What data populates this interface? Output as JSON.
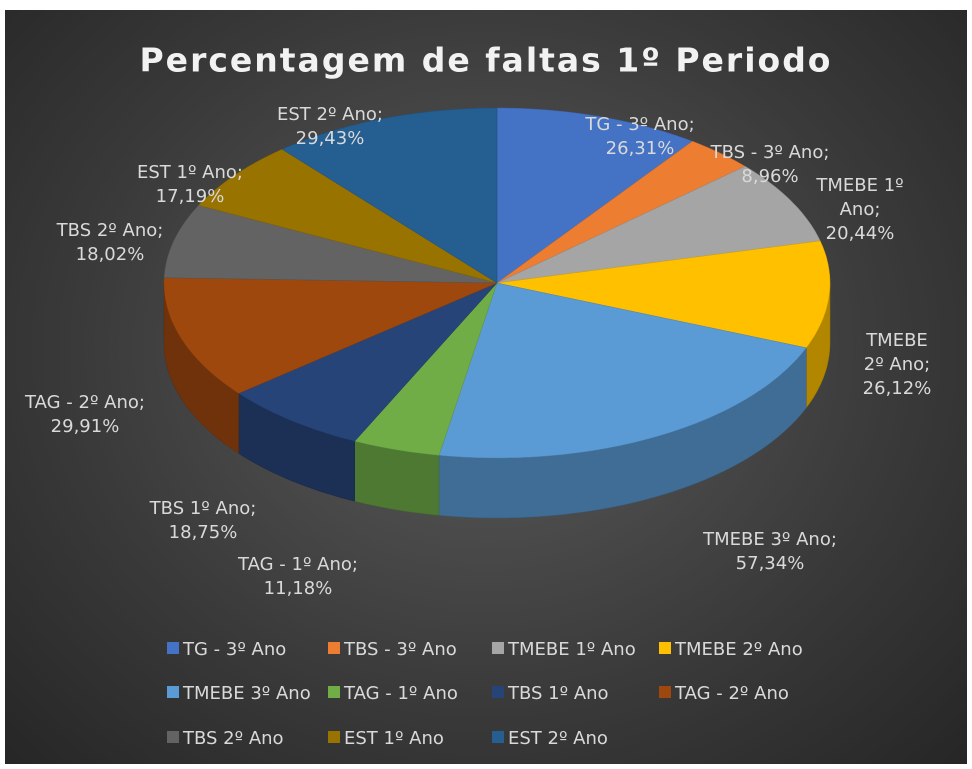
{
  "chart_data": {
    "type": "pie3d",
    "title": "Percentagem de faltas 1º Periodo",
    "categories": [
      "TG - 3º Ano",
      "TBS - 3º Ano",
      "TMEBE 1º Ano",
      "TMEBE 2º Ano",
      "TMEBE 3º Ano",
      "TAG - 1º Ano",
      "TBS 1º Ano",
      "TAG - 2º Ano",
      "TBS 2º Ano",
      "EST 1º Ano",
      "EST 2º Ano"
    ],
    "values": [
      26.31,
      8.96,
      20.44,
      26.12,
      57.34,
      11.18,
      18.75,
      29.91,
      18.02,
      17.19,
      29.43
    ],
    "value_labels": [
      "TG - 3º Ano;\n26,31%",
      "TBS - 3º Ano;\n8,96%",
      "TMEBE 1º Ano;\n20,44%",
      "TMEBE 2º Ano;\n26,12%",
      "TMEBE 3º Ano;\n57,34%",
      "TAG - 1º Ano;\n11,18%",
      "TBS 1º Ano;\n18,75%",
      "TAG - 2º Ano;\n29,91%",
      "TBS 2º Ano;\n18,02%",
      "EST 1º Ano;\n17,19%",
      "EST 2º Ano;\n29,43%"
    ],
    "colors": [
      "#4472c4",
      "#ed7d31",
      "#a5a5a5",
      "#ffc000",
      "#5b9bd5",
      "#70ad47",
      "#264478",
      "#9e480e",
      "#636363",
      "#997300",
      "#255e91"
    ],
    "legend": "bottom"
  }
}
